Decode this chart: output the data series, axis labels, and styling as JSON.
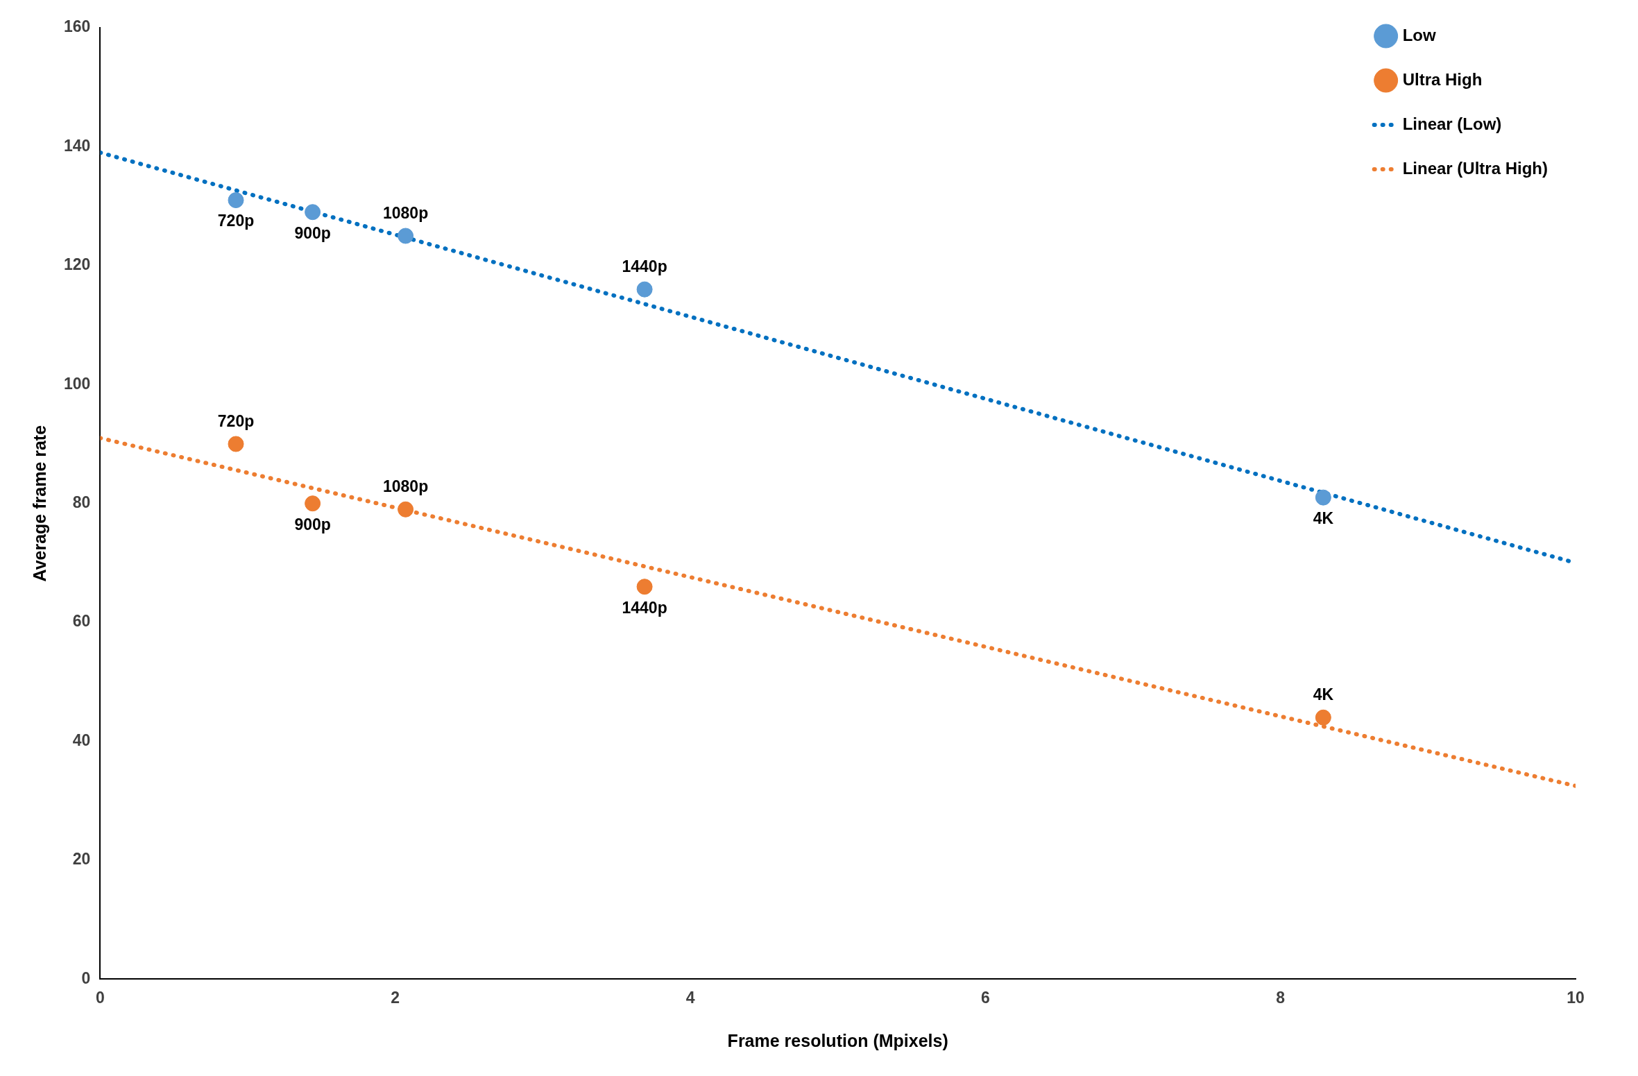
{
  "chart_data": {
    "type": "scatter",
    "xlabel": "Frame resolution (Mpixels)",
    "ylabel": "Average frame rate",
    "xlim": [
      0,
      10
    ],
    "xticks": [
      0,
      2,
      4,
      6,
      8,
      10
    ],
    "ylim": [
      0,
      160
    ],
    "yticks": [
      0,
      20,
      40,
      60,
      80,
      100,
      120,
      140,
      160
    ],
    "grid": false,
    "legend": "top right",
    "marker": "circle",
    "series": [
      {
        "name": "Low",
        "color": "#5b9bd5",
        "x": [
          0.92,
          1.44,
          2.07,
          3.69,
          8.29
        ],
        "values": [
          131,
          129,
          125,
          116,
          81
        ]
      },
      {
        "name": "Ultra High",
        "color": "#ed7d31",
        "x": [
          0.92,
          1.44,
          2.07,
          3.69,
          8.29
        ],
        "values": [
          90,
          80,
          79,
          66,
          44
        ]
      },
      {
        "name": "Linear (Low)",
        "type": "line",
        "line_style": "dotted",
        "marker": "none",
        "color": "#0070c0",
        "x": [
          0,
          10
        ],
        "values": [
          139,
          70
        ]
      },
      {
        "name": "Linear (Ultra High)",
        "type": "line",
        "line_style": "dotted",
        "marker": "none",
        "color": "#ed7d31",
        "x": [
          0,
          10
        ],
        "values": [
          91,
          32.5
        ]
      }
    ],
    "annotations": [
      {
        "text": "720p",
        "x": 0.92,
        "y": 131
      },
      {
        "text": "900p",
        "x": 1.44,
        "y": 129
      },
      {
        "text": "1080p",
        "x": 2.07,
        "y": 125
      },
      {
        "text": "1440p",
        "x": 3.69,
        "y": 116
      },
      {
        "text": "4K",
        "x": 8.29,
        "y": 81
      },
      {
        "text": "720p",
        "x": 0.92,
        "y": 90
      },
      {
        "text": "900p",
        "x": 1.44,
        "y": 80
      },
      {
        "text": "1080p",
        "x": 2.07,
        "y": 79
      },
      {
        "text": "1440p",
        "x": 3.69,
        "y": 66
      },
      {
        "text": "4K",
        "x": 8.29,
        "y": 44
      }
    ]
  }
}
